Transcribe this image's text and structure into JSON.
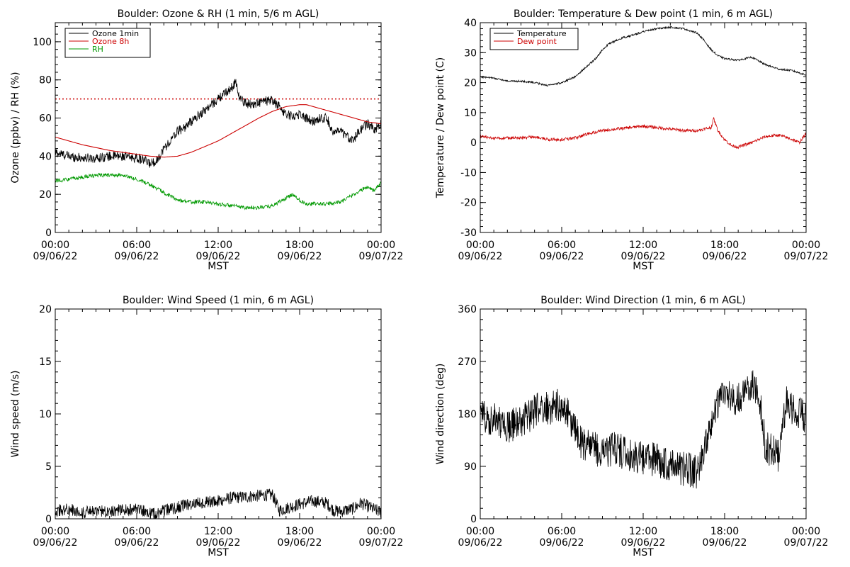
{
  "chart_data": [
    {
      "id": "ozone",
      "type": "line",
      "title": "Boulder: Ozone & RH (1 min, 5/6 m AGL)",
      "xlabel": "MST",
      "ylabel": "Ozone (ppbv) / RH (%)",
      "xlim": [
        0,
        24
      ],
      "ylim": [
        0,
        110
      ],
      "yticks": [
        0,
        20,
        40,
        60,
        80,
        100
      ],
      "xticks": [
        {
          "x": 0,
          "time": "00:00",
          "date": "09/06/22"
        },
        {
          "x": 6,
          "time": "06:00",
          "date": "09/06/22"
        },
        {
          "x": 12,
          "time": "12:00",
          "date": "09/06/22"
        },
        {
          "x": 18,
          "time": "18:00",
          "date": "09/06/22"
        },
        {
          "x": 24,
          "time": "00:00",
          "date": "09/07/22"
        }
      ],
      "reference_line": {
        "y": 70,
        "color": "#cc0000",
        "style": "dotted"
      },
      "legend_position": "top-left",
      "series": [
        {
          "name": "Ozone 1min",
          "color": "#000000",
          "noise": 2.5,
          "x": [
            0,
            1,
            2,
            3,
            4,
            5,
            6,
            6.5,
            7,
            7.5,
            8,
            8.5,
            9,
            9.5,
            10,
            10.5,
            11,
            11.5,
            12,
            12.5,
            13,
            13.3,
            13.6,
            14,
            14.5,
            15,
            15.5,
            16,
            16.5,
            17,
            17.5,
            18,
            18.5,
            19,
            19.5,
            20,
            20.5,
            21,
            21.5,
            22,
            22.5,
            23,
            23.5,
            24
          ],
          "y": [
            42,
            40,
            39,
            39,
            40,
            40,
            39,
            38,
            36,
            38,
            44,
            48,
            53,
            55,
            58,
            61,
            64,
            67,
            70,
            73,
            76,
            79,
            70,
            68,
            67,
            68,
            69,
            69,
            66,
            62,
            61,
            62,
            60,
            58,
            60,
            60,
            52,
            53,
            50,
            49,
            54,
            57,
            54,
            57
          ]
        },
        {
          "name": "Ozone 8h",
          "color": "#cc0000",
          "noise": 0,
          "x": [
            0,
            2,
            4,
            6,
            7,
            8,
            9,
            10,
            11,
            12,
            13,
            14,
            15,
            16,
            17,
            18,
            18.5,
            19,
            20,
            21,
            22,
            23,
            24
          ],
          "y": [
            50,
            46,
            43,
            41,
            40,
            39.5,
            40,
            42,
            45,
            48,
            52,
            56,
            60,
            63.5,
            66,
            67,
            67,
            66,
            64,
            62,
            60,
            58,
            57
          ]
        },
        {
          "name": "RH",
          "color": "#009900",
          "noise": 1.0,
          "x": [
            0,
            1,
            2,
            3,
            4,
            5,
            6,
            7,
            7.5,
            8,
            8.5,
            9,
            10,
            11,
            12,
            13,
            14,
            15,
            16,
            16.5,
            17,
            17.5,
            18,
            18.5,
            19,
            20,
            21,
            22,
            23,
            23.5,
            24
          ],
          "y": [
            27,
            28,
            29,
            30,
            30,
            30,
            28,
            25,
            23,
            21,
            19,
            17,
            16,
            16,
            15,
            14,
            13,
            13,
            14,
            16,
            18,
            20,
            17,
            15,
            15,
            15,
            16,
            20,
            24,
            22,
            26
          ]
        }
      ]
    },
    {
      "id": "temperature",
      "type": "line",
      "title": "Boulder: Temperature & Dew point (1 min, 6 m AGL)",
      "xlabel": "MST",
      "ylabel": "Temperature / Dew point (C)",
      "xlim": [
        0,
        24
      ],
      "ylim": [
        -30,
        40
      ],
      "yticks": [
        -30,
        -20,
        -10,
        0,
        10,
        20,
        30,
        40
      ],
      "xticks": [
        {
          "x": 0,
          "time": "00:00",
          "date": "09/06/22"
        },
        {
          "x": 6,
          "time": "06:00",
          "date": "09/06/22"
        },
        {
          "x": 12,
          "time": "12:00",
          "date": "09/06/22"
        },
        {
          "x": 18,
          "time": "18:00",
          "date": "09/06/22"
        },
        {
          "x": 24,
          "time": "00:00",
          "date": "09/07/22"
        }
      ],
      "legend_position": "top-left",
      "series": [
        {
          "name": "Temperature",
          "color": "#000000",
          "noise": 0.3,
          "x": [
            0,
            1,
            2,
            3,
            4,
            5,
            6,
            7,
            8,
            8.5,
            9,
            9.5,
            10,
            10.5,
            11,
            12,
            13,
            14,
            15,
            16,
            16.5,
            17,
            17.5,
            18,
            19,
            20,
            21,
            22,
            23,
            24
          ],
          "y": [
            22,
            21.5,
            20.5,
            20.5,
            20,
            19,
            20,
            22,
            26,
            28,
            31,
            33,
            34,
            35,
            35.5,
            37,
            38,
            38.5,
            38,
            36.5,
            34,
            31,
            29,
            28,
            27.5,
            28.5,
            26,
            24.5,
            24,
            22.5
          ]
        },
        {
          "name": "Dew point",
          "color": "#cc0000",
          "noise": 0.5,
          "x": [
            0,
            1,
            2,
            3,
            4,
            5,
            6,
            7,
            8,
            9,
            10,
            11,
            12,
            13,
            14,
            15,
            16,
            17,
            17.2,
            17.5,
            18,
            18.5,
            19,
            20,
            21,
            22,
            23,
            23.5,
            24
          ],
          "y": [
            2,
            1.5,
            1.5,
            1.5,
            2,
            1,
            1,
            1.5,
            3,
            4,
            4.5,
            5,
            5.5,
            5,
            4.5,
            4,
            4,
            5,
            8,
            4,
            1,
            -1,
            -1.5,
            0,
            2,
            2.5,
            1,
            0,
            3
          ]
        }
      ]
    },
    {
      "id": "windspeed",
      "type": "line",
      "title": "Boulder: Wind Speed (1 min, 6 m AGL)",
      "xlabel": "MST",
      "ylabel": "Wind speed (m/s)",
      "xlim": [
        0,
        24
      ],
      "ylim": [
        0,
        20
      ],
      "yticks": [
        0,
        5,
        10,
        15,
        20
      ],
      "xticks": [
        {
          "x": 0,
          "time": "00:00",
          "date": "09/06/22"
        },
        {
          "x": 6,
          "time": "06:00",
          "date": "09/06/22"
        },
        {
          "x": 12,
          "time": "12:00",
          "date": "09/06/22"
        },
        {
          "x": 18,
          "time": "18:00",
          "date": "09/06/22"
        },
        {
          "x": 24,
          "time": "00:00",
          "date": "09/07/22"
        }
      ],
      "series": [
        {
          "name": "Wind speed",
          "color": "#000000",
          "noise": 0.6,
          "x": [
            0,
            1,
            2,
            3,
            4,
            5,
            6,
            7,
            7.5,
            8,
            9,
            10,
            11,
            12,
            13,
            14,
            15,
            16,
            16.5,
            17,
            18,
            19,
            20,
            20.5,
            21,
            22,
            22.5,
            23,
            24
          ],
          "y": [
            0.8,
            0.9,
            0.6,
            0.7,
            0.8,
            0.8,
            0.9,
            0.6,
            0.4,
            0.8,
            1.1,
            1.4,
            1.6,
            1.7,
            2.0,
            2.1,
            2.2,
            2.3,
            0.8,
            1.0,
            1.4,
            1.7,
            1.5,
            0.8,
            0.7,
            1.0,
            1.5,
            1.2,
            0.6
          ]
        }
      ]
    },
    {
      "id": "winddir",
      "type": "line",
      "title": "Boulder: Wind Direction (1 min, 6 m AGL)",
      "xlabel": "MST",
      "ylabel": "Wind direction (deg)",
      "xlim": [
        0,
        24
      ],
      "ylim": [
        0,
        360
      ],
      "yticks": [
        0,
        90,
        180,
        270,
        360
      ],
      "xticks": [
        {
          "x": 0,
          "time": "00:00",
          "date": "09/06/22"
        },
        {
          "x": 6,
          "time": "06:00",
          "date": "09/06/22"
        },
        {
          "x": 12,
          "time": "12:00",
          "date": "09/06/22"
        },
        {
          "x": 18,
          "time": "18:00",
          "date": "09/06/22"
        },
        {
          "x": 24,
          "time": "00:00",
          "date": "09/07/22"
        }
      ],
      "series": [
        {
          "name": "Wind direction",
          "color": "#000000",
          "noise": 30,
          "x": [
            0,
            1,
            2,
            3,
            4,
            5,
            6,
            6.5,
            7,
            7.5,
            8,
            9,
            10,
            11,
            12,
            13,
            14,
            15,
            16,
            16.5,
            17,
            17.5,
            18,
            19,
            20,
            20.5,
            21,
            22,
            22.5,
            23,
            24
          ],
          "y": [
            180,
            170,
            160,
            165,
            185,
            190,
            195,
            175,
            150,
            130,
            125,
            115,
            120,
            110,
            105,
            100,
            95,
            85,
            80,
            110,
            160,
            200,
            215,
            205,
            225,
            225,
            125,
            110,
            200,
            190,
            175
          ]
        }
      ]
    }
  ]
}
